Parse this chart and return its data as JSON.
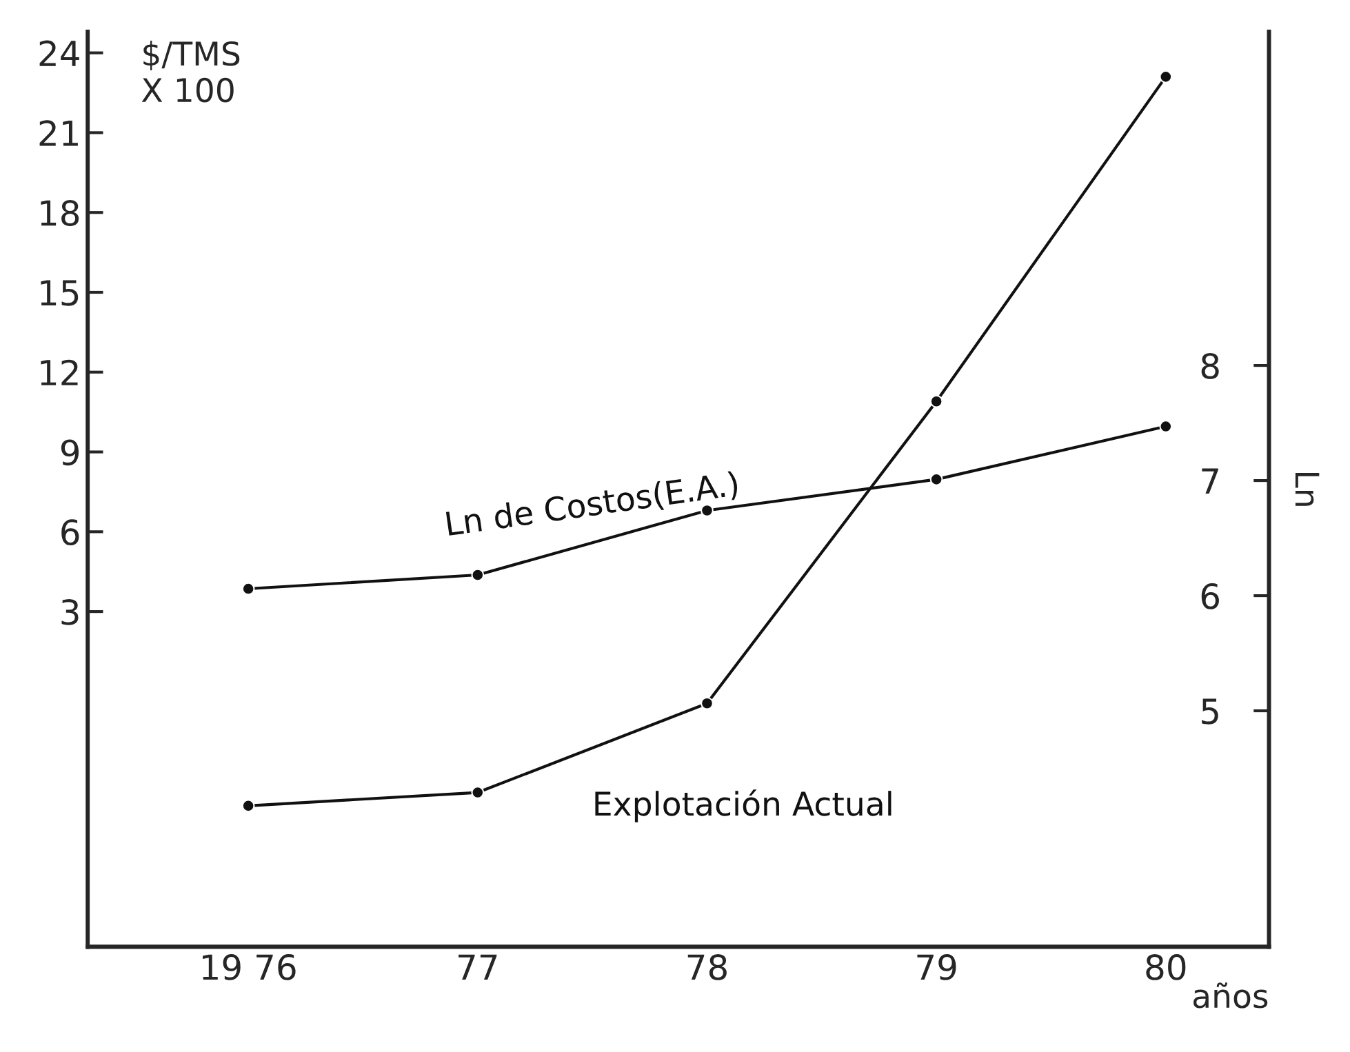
{
  "chart_data": {
    "type": "line",
    "x": [
      1976,
      1977,
      1978,
      1979,
      1980
    ],
    "xlim": [
      1975.3,
      1980.45
    ],
    "xticks": [
      {
        "value": 1976,
        "label": "19 76"
      },
      {
        "value": 1977,
        "label": "77"
      },
      {
        "value": 1978,
        "label": "78"
      },
      {
        "value": 1979,
        "label": "79"
      },
      {
        "value": 1980,
        "label": "80"
      }
    ],
    "xlabel": "años",
    "ylabel": "$/TMS\nX 100",
    "y2label": "Ln",
    "ylim": [
      -9.6,
      24.8
    ],
    "yticks": [
      3,
      6,
      9,
      12,
      15,
      18,
      21,
      24
    ],
    "y2lim": [
      2.95,
      10.9
    ],
    "y2ticks": [
      5,
      6,
      7,
      8
    ],
    "marker": "circle",
    "grid": false,
    "series": [
      {
        "name": "Explotación Actual",
        "color": "#111111",
        "values": [
          -4.3,
          -3.8,
          -0.45,
          10.9,
          23.1
        ]
      },
      {
        "name": "Ln de Costos(E.A.)",
        "color": "#111111",
        "axis": "y2",
        "values": [
          6.06,
          6.18,
          6.74,
          7.01,
          7.47
        ]
      }
    ]
  }
}
